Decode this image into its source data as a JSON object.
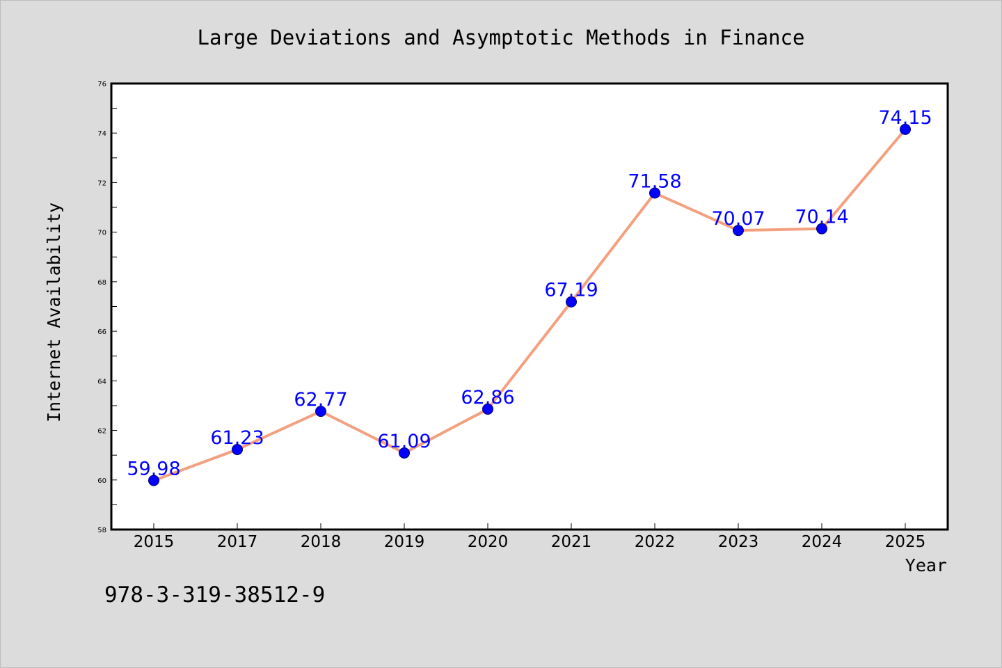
{
  "chart_data": {
    "type": "line",
    "title": "Large Deviations and Asymptotic Methods in Finance",
    "xlabel": "Year",
    "ylabel": "Internet Availability",
    "categories": [
      "2015",
      "2017",
      "2018",
      "2019",
      "2020",
      "2021",
      "2022",
      "2023",
      "2024",
      "2025"
    ],
    "series": [
      {
        "values": [
          59.98,
          61.23,
          62.77,
          61.09,
          62.86,
          67.19,
          71.58,
          70.07,
          70.14,
          74.15
        ],
        "labels": [
          "59.98",
          "61.23",
          "62.77",
          "61.09",
          "62.86",
          "67.19",
          "71.58",
          "70.07",
          "70.14",
          "74.15"
        ],
        "line_color": "#f4a07f",
        "marker_color": "#0000ff"
      }
    ],
    "ylim": [
      58,
      76
    ],
    "yticks": [
      "58",
      "60",
      "62",
      "64",
      "66",
      "68",
      "70",
      "72",
      "74",
      "76"
    ],
    "grid": false,
    "legend": "none"
  },
  "footer": {
    "isbn": "978-3-319-38512-9"
  }
}
